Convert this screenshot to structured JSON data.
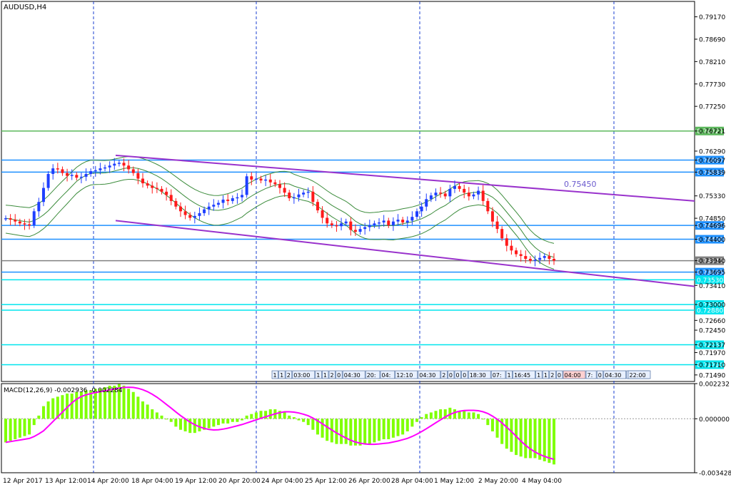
{
  "chart_data": [
    {
      "type": "candlestick",
      "symbol_label": "AUDUSD,H4",
      "price_axis_ticks": [
        "0.79170",
        "0.78690",
        "0.78210",
        "0.77730",
        "0.77250",
        "0.76721",
        "0.76290",
        "0.76097",
        "0.75839",
        "0.75330",
        "0.74850",
        "0.74696",
        "0.74400",
        "0.73940",
        "0.73695",
        "0.73410",
        "0.73000",
        "0.72660",
        "0.72450",
        "0.72137",
        "0.71970",
        "0.71710",
        "0.71490"
      ],
      "ylim": [
        0.7135,
        0.795
      ],
      "horizontal_levels": [
        {
          "price": 0.76721,
          "label": "0.76721",
          "color": "#5cb85c"
        },
        {
          "price": 0.76097,
          "label": "0.76097",
          "color": "#1e90ff"
        },
        {
          "price": 0.75839,
          "label": "0.75839",
          "color": "#1e90ff"
        },
        {
          "price": 0.74696,
          "label": "0.74696",
          "color": "#1e90ff"
        },
        {
          "price": 0.744,
          "label": "0.74400",
          "color": "#1e90ff"
        },
        {
          "price": 0.7394,
          "label": "0.73940",
          "color": "#808080"
        },
        {
          "price": 0.73695,
          "label": "0.73695",
          "color": "#1e90ff"
        },
        {
          "price": 0.7353,
          "label": "0.73530",
          "color": "#00e5ee"
        },
        {
          "price": 0.73,
          "label": "0.73000",
          "color": "#00e5ee"
        },
        {
          "price": 0.7288,
          "label": "0.72880",
          "color": "#00e5ee"
        },
        {
          "price": 0.72137,
          "label": "0.72137",
          "color": "#00e5ee"
        },
        {
          "price": 0.7171,
          "label": "0.71710",
          "color": "#00e5ee"
        }
      ],
      "trendline_label": "0.75450",
      "trendlines": [
        {
          "name": "upper-channel",
          "from": [
            0,
            0.762
          ],
          "to": [
            1,
            0.7522
          ],
          "color": "#9932cc"
        },
        {
          "name": "lower-channel",
          "from": [
            0,
            0.748
          ],
          "to": [
            1,
            0.7339
          ],
          "color": "#9932cc"
        }
      ],
      "time_axis_labels": [
        "12 Apr 2017",
        "13 Apr 12:00",
        "14 Apr 20:00",
        "18 Apr 04:00",
        "19 Apr 12:00",
        "20 Apr 20:00",
        "24 Apr 04:00",
        "25 Apr 12:00",
        "26 Apr 20:00",
        "28 Apr 04:00",
        "1 May 12:00",
        "2 May 20:00",
        "4 May 04:00"
      ],
      "period_labels": [
        "1",
        "1",
        "2",
        "03:00",
        "1",
        "1",
        "2",
        "0",
        "04:30",
        "20:",
        "04:",
        "12:10",
        "04:30",
        "2",
        "0",
        "0",
        "0",
        "18:30",
        "07:",
        "1",
        "16:45",
        "1",
        "1",
        "2",
        "0",
        "04:00",
        "7:",
        "0",
        "04:30",
        "20:30",
        "22:00"
      ],
      "close_series": [
        0.7485,
        0.7482,
        0.7478,
        0.7474,
        0.7472,
        0.747,
        0.75,
        0.752,
        0.755,
        0.758,
        0.7592,
        0.759,
        0.7582,
        0.7576,
        0.7578,
        0.7572,
        0.7574,
        0.758,
        0.7586,
        0.7588,
        0.7592,
        0.7594,
        0.7598,
        0.7602,
        0.7604,
        0.7598,
        0.759,
        0.7582,
        0.757,
        0.756,
        0.7555,
        0.755,
        0.7548,
        0.7542,
        0.7535,
        0.7522,
        0.751,
        0.75,
        0.7492,
        0.7486,
        0.749,
        0.7496,
        0.7504,
        0.751,
        0.7514,
        0.7518,
        0.7525,
        0.7522,
        0.7528,
        0.753,
        0.7535,
        0.7575,
        0.7568,
        0.757,
        0.7566,
        0.7568,
        0.7562,
        0.7558,
        0.755,
        0.754,
        0.7528,
        0.753,
        0.7536,
        0.754,
        0.7542,
        0.752,
        0.7502,
        0.7486,
        0.7474,
        0.747,
        0.7468,
        0.7474,
        0.7478,
        0.746,
        0.7456,
        0.7462,
        0.7466,
        0.747,
        0.7474,
        0.7476,
        0.748,
        0.747,
        0.7478,
        0.7482,
        0.7476,
        0.748,
        0.7488,
        0.75,
        0.751,
        0.7526,
        0.7534,
        0.754,
        0.7538,
        0.7532,
        0.7548,
        0.7554,
        0.7548,
        0.754,
        0.7532,
        0.7536,
        0.7544,
        0.7522,
        0.75,
        0.7478,
        0.7462,
        0.7442,
        0.7426,
        0.7416,
        0.7408,
        0.7404,
        0.7398,
        0.7394,
        0.7396,
        0.74,
        0.7404,
        0.7398,
        0.7394
      ],
      "macd": {
        "label": "MACD(12,26,9) -0.002936 -0.002284",
        "axis_ticks": [
          "0.002232",
          "0.000000",
          "-0.003428"
        ],
        "ylim": [
          -0.003428,
          0.002232
        ],
        "histogram": [
          -0.0015,
          -0.0014,
          -0.0013,
          -0.0012,
          -0.0011,
          -0.001,
          -0.0004,
          0.0002,
          0.0008,
          0.0011,
          0.0013,
          0.0014,
          0.0015,
          0.0016,
          0.0016,
          0.0017,
          0.0017,
          0.0018,
          0.0018,
          0.0019,
          0.0019,
          0.002,
          0.0021,
          0.0021,
          0.0022,
          0.0021,
          0.0019,
          0.0017,
          0.0014,
          0.0011,
          0.0009,
          0.0006,
          0.0004,
          0.0002,
          0.0,
          -0.0002,
          -0.0005,
          -0.0007,
          -0.0008,
          -0.0009,
          -0.0009,
          -0.0008,
          -0.0007,
          -0.0006,
          -0.0005,
          -0.0004,
          -0.0003,
          -0.0003,
          -0.0002,
          -0.0002,
          -0.0001,
          0.0002,
          0.0003,
          0.0004,
          0.0005,
          0.0005,
          0.0006,
          0.0006,
          0.0005,
          0.0004,
          0.0002,
          0.0001,
          -0.0001,
          -0.0002,
          -0.0004,
          -0.0007,
          -0.001,
          -0.0012,
          -0.0014,
          -0.0015,
          -0.0016,
          -0.0016,
          -0.0016,
          -0.0017,
          -0.0017,
          -0.0017,
          -0.0016,
          -0.0016,
          -0.0015,
          -0.0014,
          -0.0013,
          -0.0013,
          -0.0012,
          -0.0011,
          -0.001,
          -0.0008,
          -0.0005,
          -0.0002,
          0.0001,
          0.0003,
          0.0004,
          0.0005,
          0.0006,
          0.0006,
          0.0007,
          0.0006,
          0.0005,
          0.0005,
          0.0004,
          0.0004,
          0.0003,
          0.0,
          -0.0004,
          -0.0008,
          -0.0012,
          -0.0016,
          -0.0019,
          -0.0021,
          -0.0023,
          -0.0024,
          -0.0025,
          -0.0025,
          -0.0025,
          -0.0026,
          -0.0027,
          -0.0028,
          -0.0029
        ],
        "colors": {
          "histogram": "#7fff00",
          "signal": "#ff00ff"
        }
      }
    }
  ]
}
